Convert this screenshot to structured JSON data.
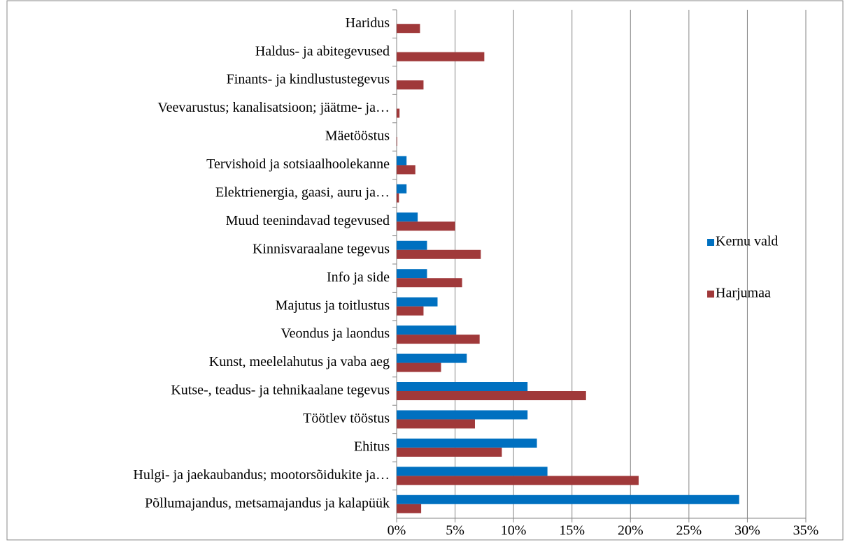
{
  "chart_data": {
    "type": "hbar",
    "categories": [
      "Haridus",
      "Haldus- ja abitegevused",
      "Finants- ja kindlustustegevus",
      "Veevarustus; kanalisatsioon; jäätme- ja…",
      "Mäetööstus",
      "Tervishoid ja sotsiaalhoolekanne",
      "Elektrienergia, gaasi, auru ja…",
      "Muud teenindavad tegevused",
      "Kinnisvaraalane tegevus",
      "Info ja side",
      "Majutus ja toitlustus",
      "Veondus ja laondus",
      "Kunst, meelelahutus ja vaba aeg",
      "Kutse-, teadus- ja tehnikaalane tegevus",
      "Töötlev tööstus",
      "Ehitus",
      "Hulgi- ja jaekaubandus; mootorsõidukite ja…",
      "Põllumajandus, metsamajandus ja kalapüük"
    ],
    "series": [
      {
        "name": "Kernu vald",
        "color": "#0070c0",
        "values": [
          0,
          0,
          0,
          0,
          0,
          0.85,
          0.85,
          1.8,
          2.6,
          2.6,
          3.5,
          5.1,
          6.0,
          11.2,
          11.2,
          12.0,
          12.9,
          29.3
        ]
      },
      {
        "name": "Harjumaa",
        "color": "#a0393a",
        "values": [
          2.0,
          7.5,
          2.3,
          0.25,
          0.05,
          1.6,
          0.2,
          5.0,
          7.2,
          5.6,
          2.3,
          7.1,
          3.8,
          16.2,
          6.7,
          9.0,
          20.7,
          2.1
        ]
      }
    ],
    "xlim": [
      0,
      35
    ],
    "xticks": [
      {
        "value": 0,
        "label": "0%"
      },
      {
        "value": 5,
        "label": "5%"
      },
      {
        "value": 10,
        "label": "10%"
      },
      {
        "value": 15,
        "label": "15%"
      },
      {
        "value": 20,
        "label": "20%"
      },
      {
        "value": 25,
        "label": "25%"
      },
      {
        "value": 30,
        "label": "30%"
      },
      {
        "value": 35,
        "label": "35%"
      }
    ],
    "grid": true,
    "legend": "right"
  }
}
